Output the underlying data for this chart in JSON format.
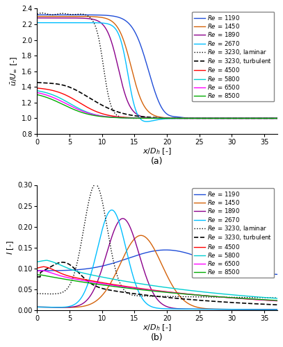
{
  "re_labels": [
    "$\\mathit{Re}$ = 1190",
    "$\\mathit{Re}$ = 1450",
    "$\\mathit{Re}$ = 1890",
    "$\\mathit{Re}$ = 2670",
    "....$\\mathit{Re}$ = 3230, laminar",
    "$-\\mathit{Re}$ = 3230, turbulent",
    "$\\mathit{Re}$ = 4500",
    "$\\mathit{Re}$ = 5800",
    "$\\mathit{Re}$ = 6500",
    "$\\mathit{Re}$ = 8500"
  ],
  "legend_labels": [
    "Re = 1190",
    "Re = 1450",
    "Re = 1890",
    "Re = 2670",
    "Re = 3230, laminar",
    "Re = 3230, turbulent",
    "Re = 4500",
    "Re = 5800",
    "Re = 6500",
    "Re = 8500"
  ],
  "colors": [
    "#1f4dd8",
    "#d4620a",
    "#8B008B",
    "#00BFFF",
    "#000000",
    "#000000",
    "#FF0000",
    "#00CED1",
    "#FF00FF",
    "#00AA00"
  ],
  "linestyles": [
    "-",
    "-",
    "-",
    "-",
    ":",
    "--",
    "-",
    "-",
    "-",
    "-"
  ],
  "linewidths": [
    1.0,
    1.0,
    1.0,
    1.0,
    1.0,
    1.2,
    1.0,
    1.0,
    1.0,
    1.0
  ],
  "xlabel": "$x/D_h$ [-]",
  "ylabel_a": "$\\bar{u}/U_\\infty$ [-]",
  "ylabel_b": "$I$ [-]",
  "label_a": "(a)",
  "label_b": "(b)",
  "xlim": [
    0,
    37
  ],
  "ylim_a": [
    0.8,
    2.4
  ],
  "ylim_b": [
    0,
    0.3
  ],
  "yticks_a": [
    0.8,
    1.0,
    1.2,
    1.4,
    1.6,
    1.8,
    2.0,
    2.2,
    2.4
  ],
  "yticks_b": [
    0.0,
    0.05,
    0.1,
    0.15,
    0.2,
    0.25,
    0.3
  ],
  "xticks": [
    0,
    5,
    10,
    15,
    20,
    25,
    30,
    35
  ]
}
